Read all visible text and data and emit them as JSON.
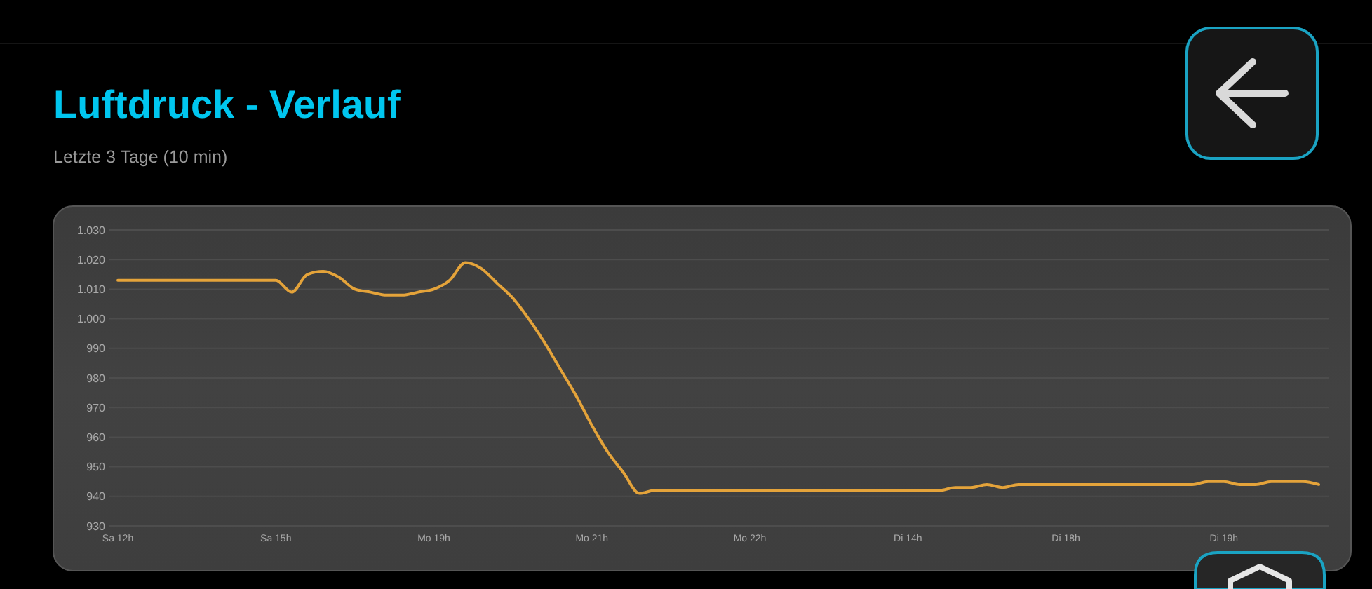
{
  "chart_data": {
    "type": "line",
    "title": "Luftdruck - Verlauf",
    "subtitle": "Letzte 3 Tage (10 min)",
    "categories": [
      "Sa 12h",
      null,
      null,
      null,
      null,
      null,
      null,
      null,
      null,
      null,
      "Sa 15h",
      null,
      null,
      null,
      null,
      null,
      null,
      null,
      null,
      null,
      "Mo 19h",
      null,
      null,
      null,
      null,
      null,
      null,
      null,
      null,
      null,
      "Mo 21h",
      null,
      null,
      null,
      null,
      null,
      null,
      null,
      null,
      null,
      "Mo 22h",
      null,
      null,
      null,
      null,
      null,
      null,
      null,
      null,
      null,
      "Di 14h",
      null,
      null,
      null,
      null,
      null,
      null,
      null,
      null,
      null,
      "Di 18h",
      null,
      null,
      null,
      null,
      null,
      null,
      null,
      null,
      null,
      "Di 19h",
      null,
      null,
      null,
      null,
      null,
      null
    ],
    "series": [
      {
        "color": "#e4a33a",
        "values": [
          1013,
          1013,
          1013,
          1013,
          1013,
          1013,
          1013,
          1013,
          1013,
          1013,
          1013,
          1009,
          1015,
          1016,
          1014,
          1010,
          1009,
          1008,
          1008,
          1009,
          1010,
          1013,
          1019,
          1017,
          1012,
          1007,
          1000,
          992,
          983,
          974,
          964,
          955,
          948,
          941,
          942,
          942,
          942,
          942,
          942,
          942,
          942,
          942,
          942,
          942,
          942,
          942,
          942,
          942,
          942,
          942,
          942,
          942,
          942,
          943,
          943,
          944,
          943,
          944,
          944,
          944,
          944,
          944,
          944,
          944,
          944,
          944,
          944,
          944,
          944,
          945,
          945,
          944,
          944,
          945,
          945,
          945,
          944
        ]
      }
    ],
    "ylim": [
      930,
      1030
    ],
    "yticks": [
      930,
      940,
      950,
      960,
      970,
      980,
      990,
      {
        "value": 1000,
        "label": "1.000"
      },
      {
        "value": 1010,
        "label": "1.010"
      },
      {
        "value": 1020,
        "label": "1.020"
      },
      {
        "value": 1030,
        "label": "1.030"
      }
    ],
    "grid": "y"
  }
}
